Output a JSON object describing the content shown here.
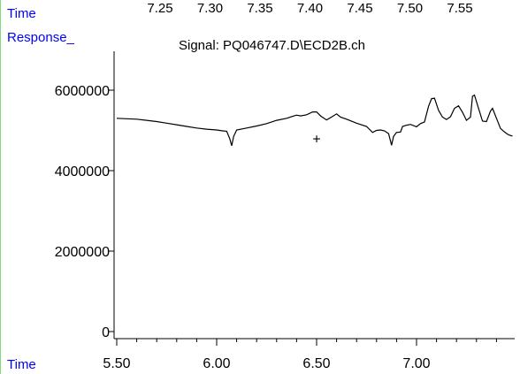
{
  "header": {
    "time_label": "Time",
    "response_label": "Response_",
    "signal_title": "Signal: PQ046747.D\\ECD2B.ch",
    "top_time_ticks": [
      "7.25",
      "7.30",
      "7.35",
      "7.40",
      "7.45",
      "7.50",
      "7.55"
    ]
  },
  "footer": {
    "time_label": "Time"
  },
  "colors": {
    "label_blue": "#0000ff",
    "trace": "#000000",
    "frame_green": "#7ddc7d"
  },
  "chart_data": {
    "type": "line",
    "title": "Signal: PQ046747.D\\ECD2B.ch",
    "xlabel": "Time",
    "ylabel": "Response_",
    "xlim": [
      5.5,
      7.48
    ],
    "ylim": [
      0,
      7200000
    ],
    "x_ticks": [
      5.5,
      6.0,
      6.5,
      7.0
    ],
    "x_tick_labels": [
      "5.50",
      "6.00",
      "6.50",
      "7.00"
    ],
    "y_ticks": [
      0,
      2000000,
      4000000,
      6000000
    ],
    "y_tick_labels": [
      "0",
      "2000000",
      "4000000",
      "6000000"
    ],
    "grid": false,
    "marker": {
      "x": 6.5,
      "y": 4800000,
      "symbol": "+"
    },
    "series": [
      {
        "x": [
          5.5,
          5.55,
          5.6,
          5.65,
          5.7,
          5.75,
          5.8,
          5.85,
          5.9,
          5.95,
          6.0,
          6.03,
          6.05,
          6.065,
          6.075,
          6.085,
          6.1,
          6.15,
          6.2,
          6.25,
          6.3,
          6.35,
          6.38,
          6.4,
          6.42,
          6.45,
          6.48,
          6.5,
          6.52,
          6.55,
          6.58,
          6.6,
          6.62,
          6.65,
          6.7,
          6.75,
          6.78,
          6.8,
          6.82,
          6.84,
          6.86,
          6.875,
          6.885,
          6.9,
          6.92,
          6.93,
          6.95,
          6.97,
          7.0,
          7.02,
          7.04,
          7.06,
          7.075,
          7.09,
          7.11,
          7.13,
          7.15,
          7.17,
          7.19,
          7.21,
          7.23,
          7.25,
          7.27,
          7.28,
          7.29,
          7.31,
          7.33,
          7.35,
          7.37,
          7.38,
          7.4,
          7.42,
          7.44,
          7.46,
          7.48
        ],
        "y": [
          5300000,
          5290000,
          5280000,
          5250000,
          5220000,
          5180000,
          5140000,
          5100000,
          5060000,
          5030000,
          5010000,
          4990000,
          4980000,
          4800000,
          4620000,
          4850000,
          5010000,
          5060000,
          5110000,
          5170000,
          5250000,
          5300000,
          5350000,
          5380000,
          5360000,
          5390000,
          5460000,
          5460000,
          5360000,
          5260000,
          5350000,
          5410000,
          5330000,
          5280000,
          5180000,
          5100000,
          4950000,
          5000000,
          5010000,
          4990000,
          4920000,
          4630000,
          4850000,
          4950000,
          4960000,
          5100000,
          5130000,
          5150000,
          5090000,
          5170000,
          5210000,
          5600000,
          5790000,
          5800000,
          5500000,
          5330000,
          5270000,
          5340000,
          5550000,
          5610000,
          5450000,
          5250000,
          5330000,
          5850000,
          5880000,
          5550000,
          5230000,
          5220000,
          5480000,
          5550000,
          5300000,
          5050000,
          4960000,
          4890000,
          4860000
        ]
      }
    ]
  }
}
